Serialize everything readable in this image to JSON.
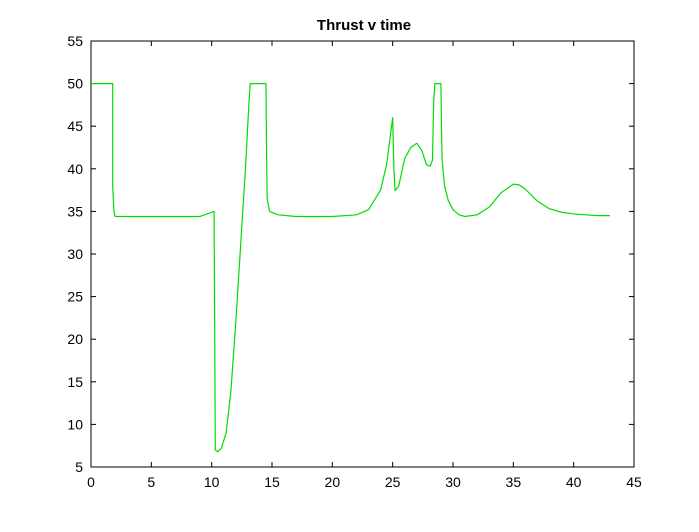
{
  "chart_data": {
    "type": "line",
    "title": "Thrust v time",
    "xlabel": "",
    "ylabel": "",
    "xlim": [
      0,
      45
    ],
    "ylim": [
      5,
      55
    ],
    "xticks": [
      0,
      5,
      10,
      15,
      20,
      25,
      30,
      35,
      40,
      45
    ],
    "yticks": [
      5,
      10,
      15,
      20,
      25,
      30,
      35,
      40,
      45,
      50,
      55
    ],
    "grid": false,
    "legend": "none",
    "colors": {
      "series": "#00dd00",
      "axes": "#000000",
      "background": "#ffffff"
    },
    "series": [
      {
        "name": "",
        "x": [
          0,
          1.8,
          1.8,
          1.9,
          2.0,
          5,
          9,
          10.2,
          10.3,
          10.5,
          10.8,
          11.2,
          11.6,
          12.0,
          12.4,
          12.8,
          13.1,
          13.2,
          13.3,
          14.5,
          14.55,
          14.6,
          14.8,
          15.5,
          17,
          20,
          22,
          23,
          24,
          24.5,
          25.0,
          25.1,
          25.2,
          25.5,
          26.0,
          26.5,
          27.0,
          27.4,
          27.8,
          28.1,
          28.3,
          28.4,
          28.5,
          29.0,
          29.05,
          29.1,
          29.3,
          29.6,
          30.0,
          30.5,
          31.0,
          32.0,
          33.0,
          34.0,
          35.0,
          35.5,
          36.0,
          37.0,
          38.0,
          39.0,
          40.0,
          41.0,
          42.0,
          43.0
        ],
        "values": [
          50,
          50,
          38,
          35,
          34.4,
          34.4,
          34.4,
          35,
          7.0,
          6.8,
          7.2,
          9,
          14,
          22,
          31,
          40,
          48,
          50,
          50,
          50,
          42,
          36.5,
          35,
          34.6,
          34.4,
          34.4,
          34.6,
          35.2,
          37.5,
          40.5,
          46,
          40,
          37.4,
          38,
          41.2,
          42.5,
          43,
          42.2,
          40.5,
          40.3,
          41,
          48,
          50,
          50,
          44.5,
          41,
          38,
          36.3,
          35.2,
          34.6,
          34.4,
          34.6,
          35.5,
          37.2,
          38.2,
          38.1,
          37.6,
          36.2,
          35.3,
          34.9,
          34.7,
          34.6,
          34.5,
          34.5
        ]
      }
    ]
  }
}
